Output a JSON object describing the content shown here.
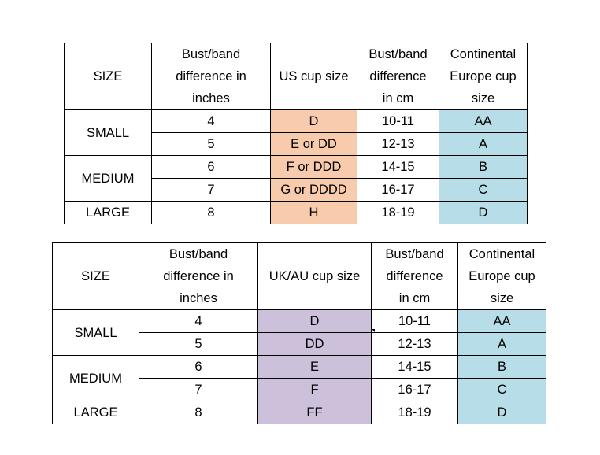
{
  "table_us": {
    "headers": [
      [
        "SIZE"
      ],
      [
        "Bust/band",
        "difference in",
        "inches"
      ],
      [
        "US cup size"
      ],
      [
        "Bust/band",
        "difference",
        "in cm"
      ],
      [
        "Continental",
        "Europe cup",
        "size"
      ]
    ],
    "groups": [
      "SMALL",
      "MEDIUM",
      "LARGE"
    ],
    "rows": [
      {
        "inches": "4",
        "cup": "D",
        "cm": "10-11",
        "eu": "AA"
      },
      {
        "inches": "5",
        "cup": "E or DD",
        "cm": "12-13",
        "eu": "A"
      },
      {
        "inches": "6",
        "cup": "F or DDD",
        "cm": "14-15",
        "eu": "B"
      },
      {
        "inches": "7",
        "cup": "G or DDDD",
        "cm": "16-17",
        "eu": "C"
      },
      {
        "inches": "8",
        "cup": "H",
        "cm": "18-19",
        "eu": "D"
      }
    ]
  },
  "table_uk": {
    "headers": [
      [
        "SIZE"
      ],
      [
        "Bust/band",
        "difference in",
        "inches"
      ],
      [
        "UK/AU cup size"
      ],
      [
        "Bust/band",
        "difference",
        "in cm"
      ],
      [
        "Continental",
        "Europe cup",
        "size"
      ]
    ],
    "groups": [
      "SMALL",
      "MEDIUM",
      "LARGE"
    ],
    "rows": [
      {
        "inches": "4",
        "cup": "D",
        "cm": "10-11",
        "eu": "AA"
      },
      {
        "inches": "5",
        "cup": "DD",
        "cm": "12-13",
        "eu": "A"
      },
      {
        "inches": "6",
        "cup": "E",
        "cm": "14-15",
        "eu": "B"
      },
      {
        "inches": "7",
        "cup": "F",
        "cm": "16-17",
        "eu": "C"
      },
      {
        "inches": "8",
        "cup": "FF",
        "cm": "18-19",
        "eu": "D"
      }
    ]
  },
  "colors": {
    "us_cup": "#f8cbad",
    "uk_cup": "#ccc0da",
    "eu_cup": "#b7dee8"
  }
}
